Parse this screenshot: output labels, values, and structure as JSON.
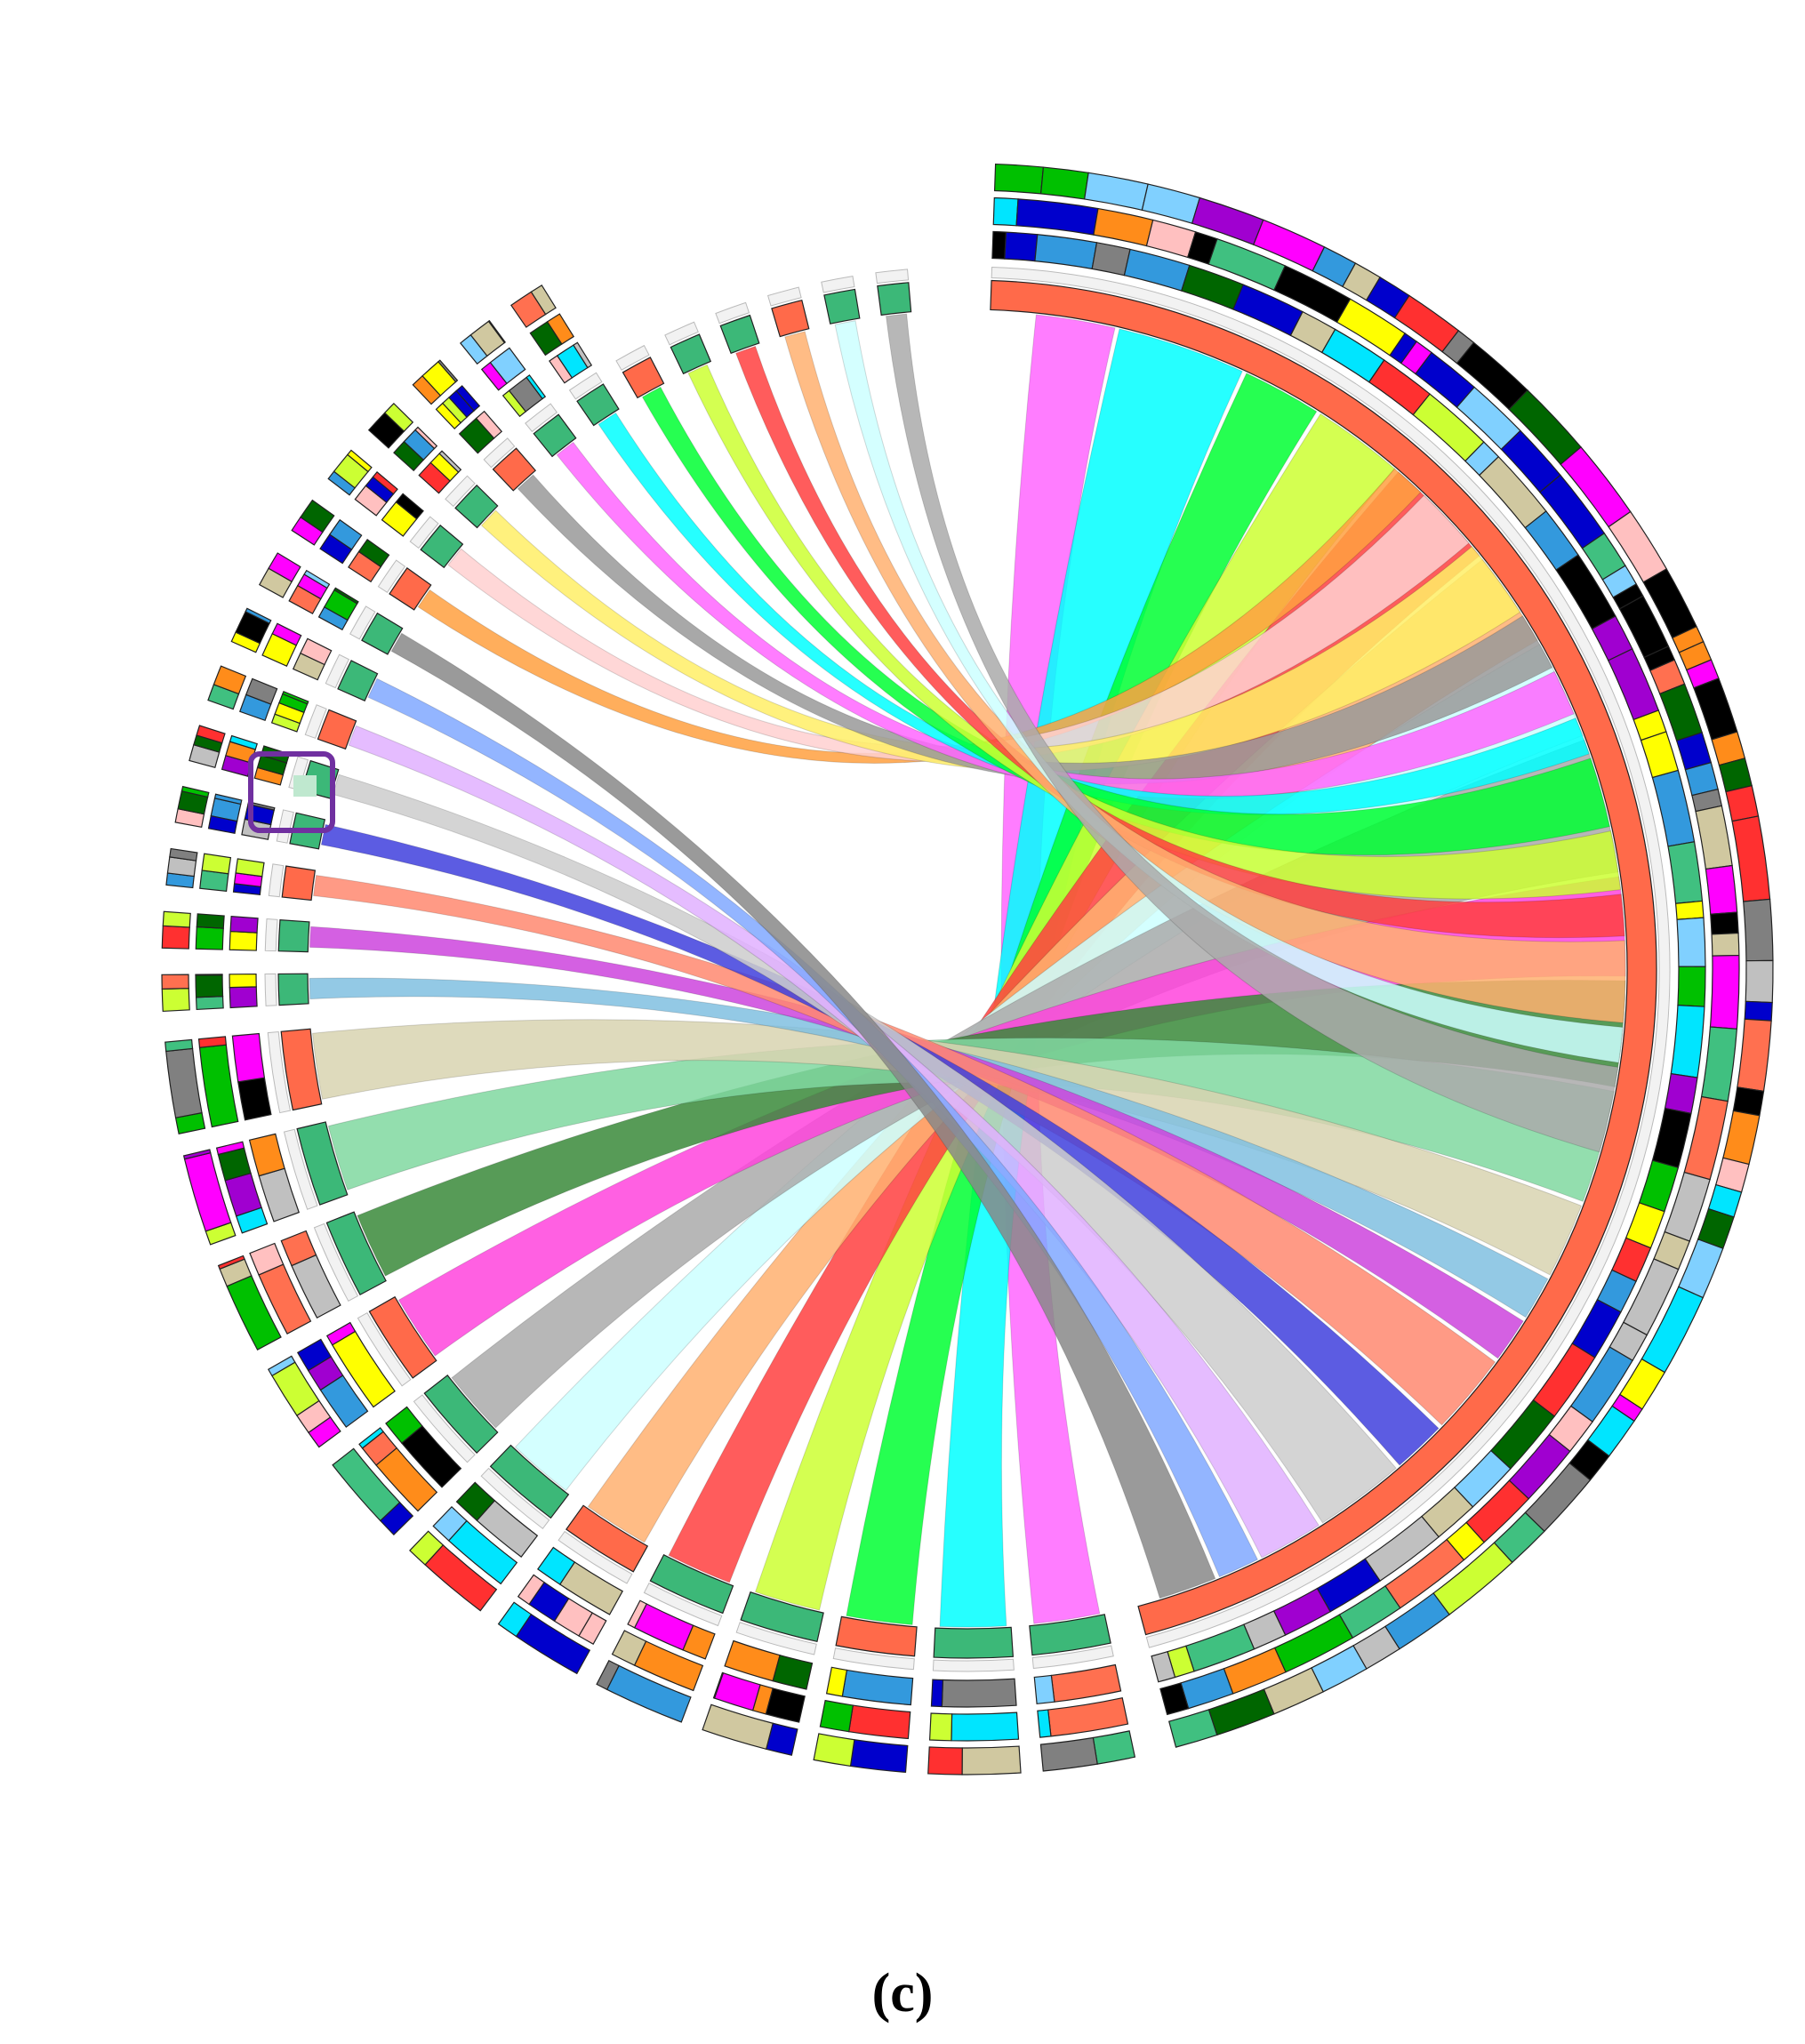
{
  "caption": "(c)"
}
